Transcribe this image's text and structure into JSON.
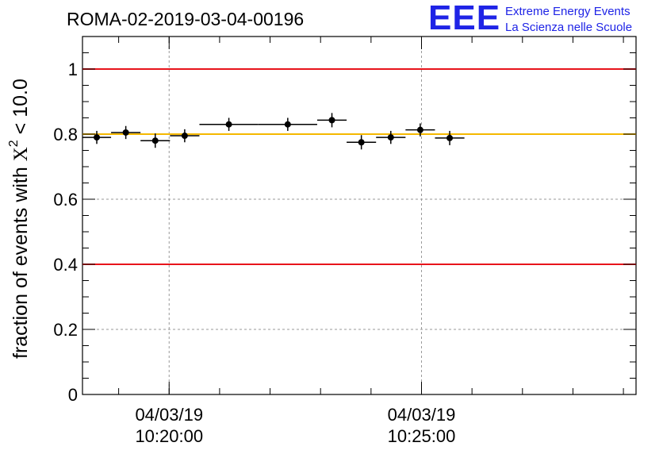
{
  "title": "ROMA-02-2019-03-04-00196",
  "logo": {
    "letters": "EEE",
    "line1": "Extreme Energy Events",
    "line2": "La Scienza nelle Scuole",
    "color": "#1f24e6"
  },
  "chart_data": {
    "type": "scatter",
    "title": "ROMA-02-2019-03-04-00196",
    "ylabel_base": "fraction of events with",
    "ylabel_symbol": "X",
    "ylabel_sup": "2",
    "ylabel_tail": " < 10.0",
    "ylim": [
      0,
      1.1
    ],
    "yticks": [
      "0",
      "0.2",
      "0.4",
      "0.6",
      "0.8",
      "1"
    ],
    "ytick_values": [
      0,
      0.2,
      0.4,
      0.6,
      0.8,
      1.0
    ],
    "xlim": [
      "10:18:17",
      "10:29:15"
    ],
    "xticks": [
      {
        "time": "10:20:00",
        "date": "04/03/19"
      },
      {
        "time": "10:25:00",
        "date": "04/03/19"
      }
    ],
    "grid": true,
    "reference_lines": [
      {
        "y": 1.0,
        "color": "#e8141b"
      },
      {
        "y": 0.4,
        "color": "#e8141b"
      },
      {
        "y": 0.8,
        "color": "#f5b800"
      }
    ],
    "points": [
      {
        "x_start": "10:18:17",
        "x_end": "10:18:51",
        "y": 0.79,
        "err": 0.02
      },
      {
        "x_start": "10:18:51",
        "x_end": "10:19:26",
        "y": 0.805,
        "err": 0.02
      },
      {
        "x_start": "10:19:26",
        "x_end": "10:20:01",
        "y": 0.78,
        "err": 0.022
      },
      {
        "x_start": "10:20:01",
        "x_end": "10:20:36",
        "y": 0.795,
        "err": 0.02
      },
      {
        "x_start": "10:20:36",
        "x_end": "10:21:46",
        "y": 0.83,
        "err": 0.02
      },
      {
        "x_start": "10:21:46",
        "x_end": "10:22:56",
        "y": 0.83,
        "err": 0.02
      },
      {
        "x_start": "10:22:56",
        "x_end": "10:23:31",
        "y": 0.843,
        "err": 0.022
      },
      {
        "x_start": "10:23:31",
        "x_end": "10:24:06",
        "y": 0.775,
        "err": 0.022
      },
      {
        "x_start": "10:24:06",
        "x_end": "10:24:41",
        "y": 0.79,
        "err": 0.02
      },
      {
        "x_start": "10:24:41",
        "x_end": "10:25:16",
        "y": 0.813,
        "err": 0.02
      },
      {
        "x_start": "10:25:16",
        "x_end": "10:25:51",
        "y": 0.788,
        "err": 0.022
      }
    ]
  }
}
